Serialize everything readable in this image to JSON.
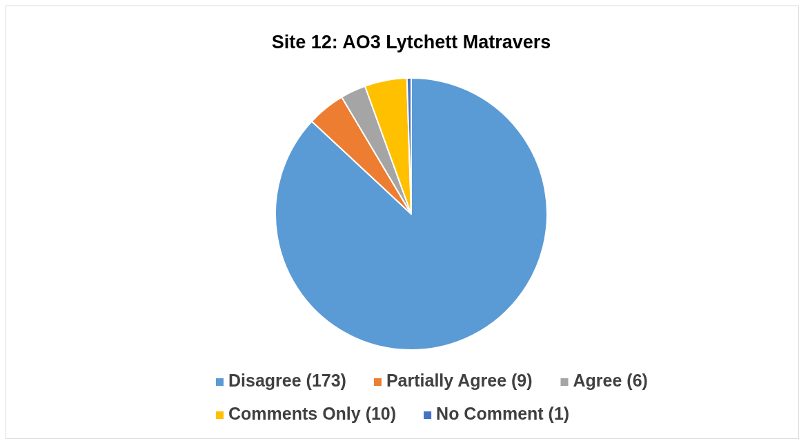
{
  "chart_data": {
    "type": "pie",
    "title": "Site 12: AO3 Lytchett Matravers",
    "categories": [
      "Disagree (173)",
      "Partially Agree (9)",
      "Agree (6)",
      "Comments Only (10)",
      "No Comment (1)"
    ],
    "values": [
      173,
      9,
      6,
      10,
      1
    ],
    "colors": [
      "#5b9bd5",
      "#ed7d31",
      "#a5a5a5",
      "#ffc000",
      "#4472c4"
    ],
    "legend": "bottom"
  }
}
